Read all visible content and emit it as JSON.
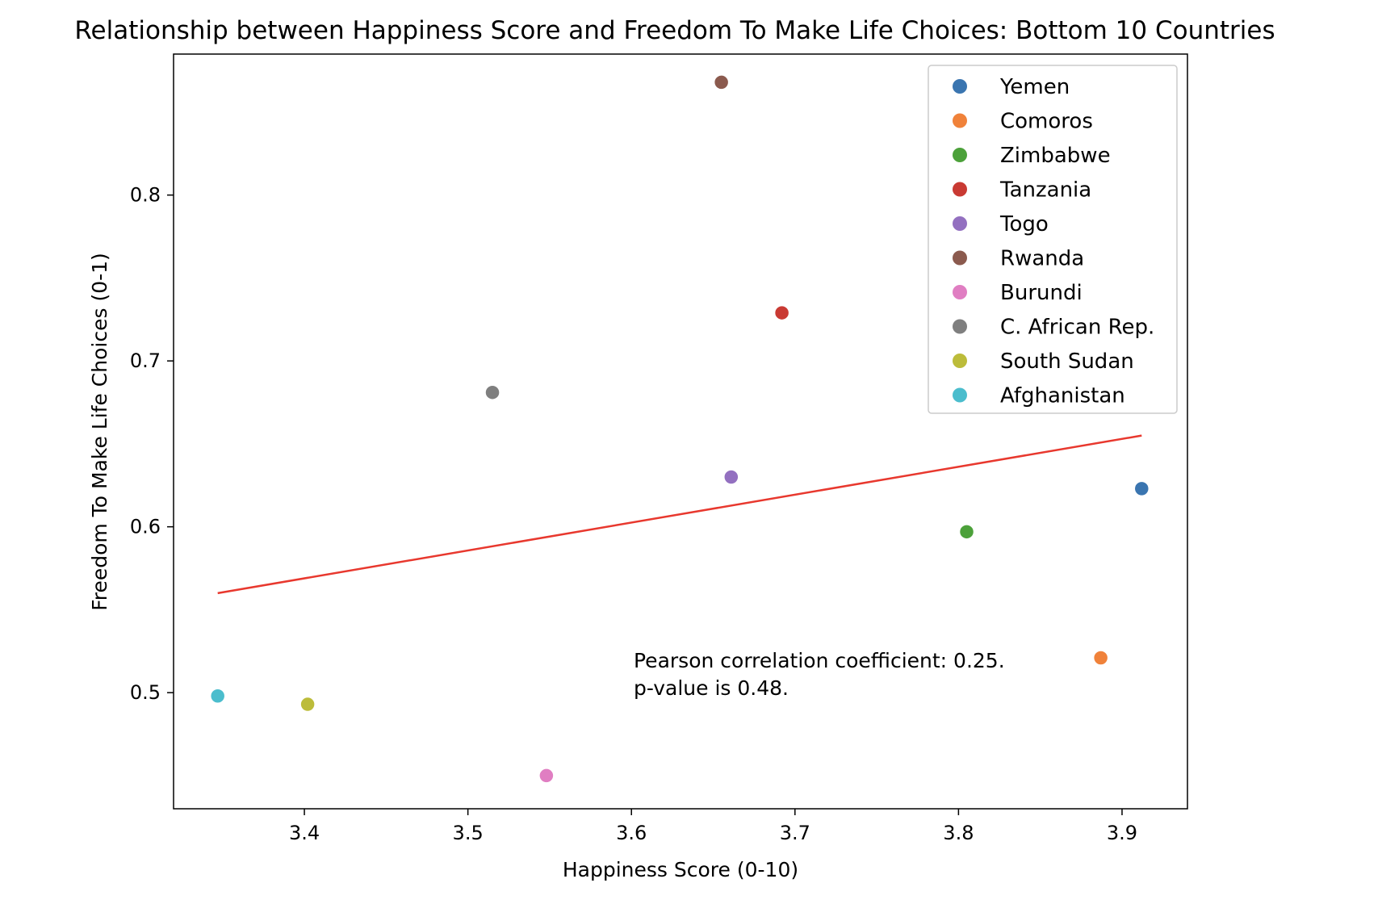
{
  "chart_data": {
    "type": "scatter",
    "title": "Relationship between Happiness Score and Freedom To Make Life Choices: Bottom 10 Countries",
    "xlabel": "Happiness Score (0-10)",
    "ylabel": "Freedom To Make Life Choices (0-1)",
    "xlim": [
      3.32,
      3.94
    ],
    "ylim": [
      0.43,
      0.885
    ],
    "xticks": [
      3.4,
      3.5,
      3.6,
      3.7,
      3.8,
      3.9
    ],
    "xtick_labels": [
      "3.4",
      "3.5",
      "3.6",
      "3.7",
      "3.8",
      "3.9"
    ],
    "yticks": [
      0.5,
      0.6,
      0.7,
      0.8
    ],
    "ytick_labels": [
      "0.5",
      "0.6",
      "0.7",
      "0.8"
    ],
    "grid": false,
    "legend_position": "top-right",
    "series": [
      {
        "name": "Yemen",
        "color": "#3a75b0",
        "x": 3.912,
        "y": 0.623
      },
      {
        "name": "Comoros",
        "color": "#f0823a",
        "x": 3.887,
        "y": 0.521
      },
      {
        "name": "Zimbabwe",
        "color": "#4ca13a",
        "x": 3.805,
        "y": 0.597
      },
      {
        "name": "Tanzania",
        "color": "#c93a33",
        "x": 3.692,
        "y": 0.729
      },
      {
        "name": "Togo",
        "color": "#9370c0",
        "x": 3.661,
        "y": 0.63
      },
      {
        "name": "Rwanda",
        "color": "#8b5a4e",
        "x": 3.655,
        "y": 0.868
      },
      {
        "name": "Burundi",
        "color": "#e07ec2",
        "x": 3.548,
        "y": 0.45
      },
      {
        "name": "C. African Rep.",
        "color": "#7f7f7f",
        "x": 3.515,
        "y": 0.681
      },
      {
        "name": "South Sudan",
        "color": "#bcbc3a",
        "x": 3.402,
        "y": 0.493
      },
      {
        "name": "Afghanistan",
        "color": "#4bbdcd",
        "x": 3.347,
        "y": 0.498
      }
    ],
    "regression_line": {
      "color": "#e8382e",
      "x": [
        3.347,
        3.912
      ],
      "y": [
        0.56,
        0.655
      ]
    },
    "annotation": {
      "line1": "Pearson correlation coefficient: 0.25.",
      "line2": "p-value is 0.48.",
      "x": 3.6,
      "y": 0.515
    }
  }
}
